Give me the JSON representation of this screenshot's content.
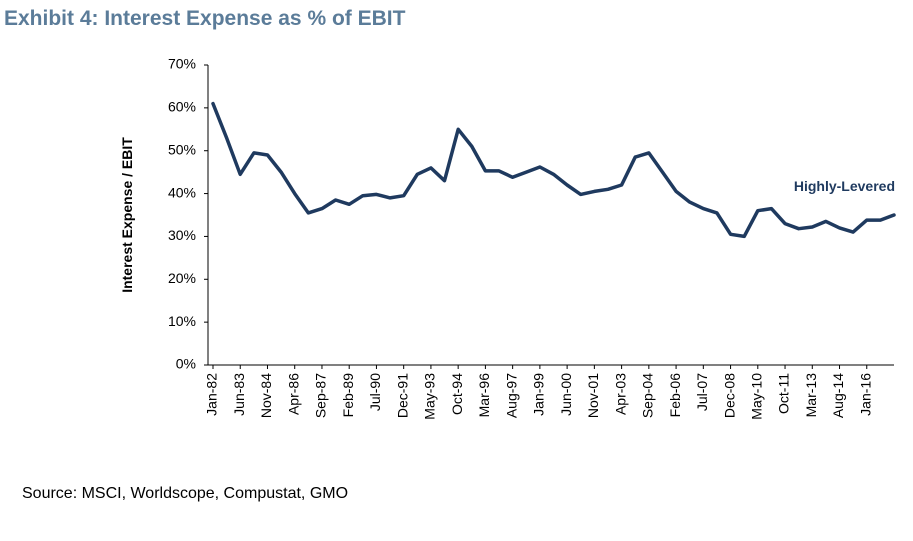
{
  "chart_data": {
    "type": "line",
    "title": "Exhibit 4: Interest Expense as % of EBIT",
    "y_label": "Interest Expense / EBIT",
    "annotation": "Highly-Levered",
    "source": "Source: MSCI, Worldscope, Compustat, GMO",
    "categories": [
      "Jan-82",
      null,
      "Jun-83",
      null,
      "Nov-84",
      null,
      "Apr-86",
      null,
      "Sep-87",
      null,
      "Feb-89",
      null,
      "Jul-90",
      null,
      "Dec-91",
      null,
      "May-93",
      null,
      "Oct-94",
      null,
      "Mar-96",
      null,
      "Aug-97",
      null,
      "Jan-99",
      null,
      "Jun-00",
      null,
      "Nov-01",
      null,
      "Apr-03",
      null,
      "Sep-04",
      null,
      "Feb-06",
      null,
      "Jul-07",
      null,
      "Dec-08",
      null,
      "May-10",
      null,
      "Oct-11",
      null,
      "Mar-13",
      null,
      "Aug-14",
      null,
      "Jan-16",
      null,
      null
    ],
    "series": [
      {
        "name": "Interest Expense / EBIT",
        "color": "#1f3a5f",
        "values": [
          61,
          53,
          44.5,
          49.5,
          49,
          45,
          40,
          35.5,
          36.5,
          38.5,
          37.5,
          39.5,
          39.8,
          39,
          39.5,
          44.5,
          46,
          43,
          55,
          51,
          45.3,
          45.3,
          43.8,
          45,
          46.2,
          44.5,
          42,
          39.8,
          40.5,
          41,
          42,
          48.5,
          49.5,
          45,
          40.5,
          38,
          36.5,
          35.5,
          30.5,
          30,
          36,
          36.5,
          33,
          31.8,
          32.2,
          33.5,
          32,
          31,
          33.8,
          33.8,
          35
        ]
      }
    ],
    "ylim": [
      0,
      70
    ],
    "yticks": [
      {
        "value": 0,
        "label": "0%"
      },
      {
        "value": 10,
        "label": "10%"
      },
      {
        "value": 20,
        "label": "20%"
      },
      {
        "value": 30,
        "label": "30%"
      },
      {
        "value": 40,
        "label": "40%"
      },
      {
        "value": 50,
        "label": "50%"
      },
      {
        "value": 60,
        "label": "60%"
      },
      {
        "value": 70,
        "label": "70%"
      }
    ],
    "grid": false
  }
}
